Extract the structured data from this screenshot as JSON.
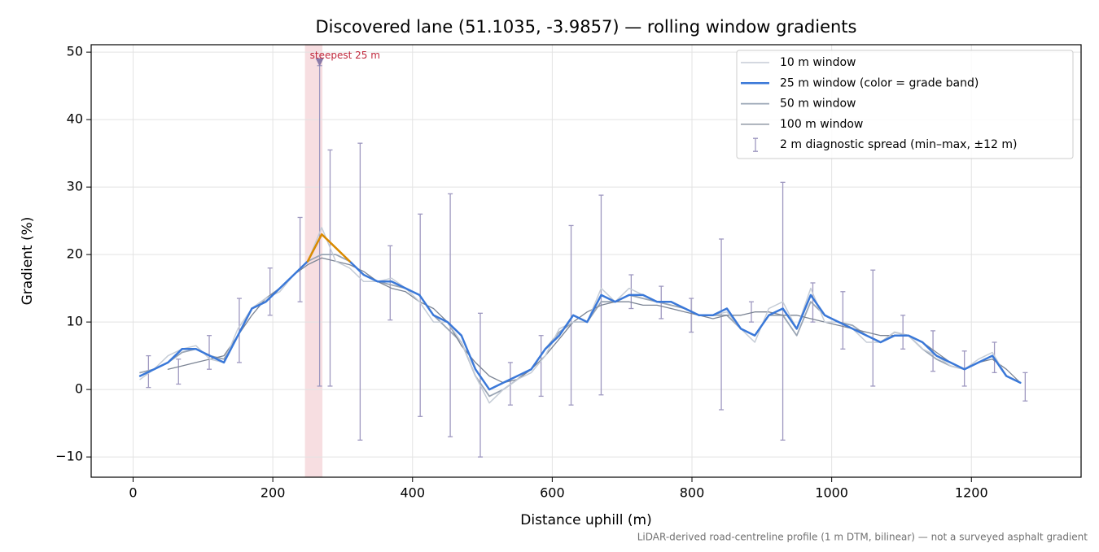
{
  "chart_data": {
    "type": "line",
    "title": "Discovered lane (51.1035, -3.9857) — rolling window gradients",
    "x_label": "Distance uphill (m)",
    "y_label": "Gradient (%)",
    "footnote": "LiDAR-derived road-centreline profile (1 m DTM, bilinear) — not a surveyed asphalt gradient",
    "xlim": [
      -60,
      1357
    ],
    "ylim": [
      -13,
      51.1
    ],
    "xticks": [
      0,
      200,
      400,
      600,
      800,
      1000,
      1200
    ],
    "yticks": [
      {
        "value": -10,
        "label": "−10"
      },
      0,
      10,
      20,
      30,
      40,
      50
    ],
    "grid": true,
    "legend": "upper right",
    "x": [
      10,
      30,
      50,
      70,
      90,
      110,
      130,
      150,
      170,
      190,
      210,
      230,
      250,
      270,
      290,
      310,
      330,
      350,
      370,
      390,
      410,
      430,
      450,
      470,
      490,
      510,
      530,
      550,
      570,
      590,
      610,
      630,
      650,
      670,
      690,
      710,
      730,
      750,
      770,
      790,
      810,
      830,
      850,
      870,
      890,
      910,
      930,
      950,
      970,
      990,
      1010,
      1030,
      1050,
      1070,
      1090,
      1110,
      1130,
      1150,
      1170,
      1190,
      1210,
      1230,
      1250,
      1270
    ],
    "series": [
      {
        "name": "10 m window",
        "color": "#c5ccd6",
        "width": 1.5,
        "values": [
          1.5,
          3,
          5,
          6,
          6.5,
          4.5,
          4,
          9,
          12,
          13.5,
          14.5,
          17,
          19,
          24,
          19,
          18,
          16,
          16,
          16.5,
          15,
          13,
          10,
          10,
          7,
          2,
          -2,
          0,
          1.5,
          2.5,
          5,
          9,
          10,
          10,
          15,
          13,
          15,
          14,
          13,
          13,
          12,
          11,
          11,
          11.5,
          9,
          7,
          12,
          13,
          9,
          15,
          10,
          10,
          9,
          7,
          7,
          8.5,
          8,
          6,
          5,
          3.5,
          3,
          4.5,
          5.5,
          2,
          1
        ]
      },
      {
        "name": "25 m window (color = grade band)",
        "color": "#3a78d8",
        "width": 2.5,
        "band_threshold": 20,
        "band_color": "#d98a00",
        "values": [
          2,
          3,
          4,
          6,
          6,
          5,
          4,
          8,
          12,
          13,
          15,
          17,
          19,
          23,
          21,
          19,
          17,
          16,
          16,
          15,
          14,
          11,
          10,
          8,
          3,
          0,
          1,
          2,
          3,
          6,
          8,
          11,
          10,
          14,
          13,
          14,
          14,
          13,
          13,
          12,
          11,
          11,
          12,
          9,
          8,
          11,
          12,
          9,
          14,
          11,
          10,
          9,
          8,
          7,
          8,
          8,
          7,
          5,
          4,
          3,
          4,
          5,
          2,
          1
        ]
      },
      {
        "name": "50 m window",
        "color": "#9aa5b4",
        "width": 1.8,
        "values": [
          2.5,
          3,
          4,
          5.5,
          6,
          5,
          4.5,
          8,
          12,
          13.5,
          15,
          17,
          19,
          20,
          20,
          19,
          17,
          16,
          15.5,
          15,
          14,
          11,
          9,
          7,
          2,
          -1,
          0,
          1.5,
          3,
          6,
          8.5,
          10,
          10,
          13,
          13,
          14,
          13.5,
          13,
          12.5,
          12,
          11,
          11,
          11,
          9,
          8,
          11,
          11,
          8,
          13,
          11,
          10,
          9.5,
          8,
          7,
          8.5,
          8,
          6,
          4.5,
          3.5,
          3,
          4,
          5,
          2,
          1
        ]
      },
      {
        "name": "100 m window",
        "color": "#7b8494",
        "width": 1.3,
        "values": [
          null,
          null,
          3,
          3.5,
          4,
          4.5,
          5,
          8,
          11,
          13.5,
          15,
          17,
          18.5,
          19.5,
          19,
          18.5,
          17.5,
          16,
          15,
          14.5,
          13,
          12,
          10,
          6.5,
          4,
          2,
          1,
          1.5,
          3,
          5,
          7.5,
          10,
          11.5,
          12.5,
          13,
          13,
          12.5,
          12.5,
          12,
          11.5,
          11,
          10.5,
          11,
          11,
          11.5,
          11.5,
          11,
          11,
          10.5,
          10,
          9.5,
          9,
          8.5,
          8,
          8,
          8,
          7,
          5.5,
          4,
          3,
          4,
          4.5,
          3,
          1
        ]
      }
    ],
    "error_bars": {
      "name": "2 m diagnostic spread (min–max, ±12 m)",
      "color": "#9e98c0",
      "x": [
        22,
        65,
        109,
        152,
        196,
        239,
        267,
        282,
        325,
        368,
        411,
        454,
        497,
        540,
        584,
        627,
        670,
        713,
        756,
        799,
        842,
        885,
        930,
        973,
        1016,
        1059,
        1102,
        1145,
        1190,
        1233,
        1277
      ],
      "low": [
        0.3,
        0.8,
        3,
        4,
        11,
        13,
        0.5,
        0.5,
        -7.5,
        10.3,
        -4,
        -7,
        -10,
        -2.3,
        -1,
        -2.3,
        -0.8,
        12,
        10.5,
        8.5,
        -3,
        10,
        -7.5,
        10,
        6,
        0.5,
        6,
        2.7,
        0.5,
        2.5,
        -1.7
      ],
      "high": [
        5,
        4.5,
        8,
        13.5,
        18,
        25.5,
        48,
        35.5,
        36.5,
        21.3,
        26,
        29,
        11.3,
        4,
        8,
        24.3,
        28.8,
        17,
        15.3,
        13.5,
        22.3,
        13,
        30.7,
        15.8,
        14.5,
        17.7,
        11,
        8.7,
        5.7,
        7,
        2.5
      ]
    },
    "highlight": {
      "x_range": [
        246,
        271
      ],
      "label": "steepest 25 m",
      "marker_x": 267,
      "marker_y": 48.5,
      "color": "#e8a0a8",
      "label_color": "#c0283c"
    }
  }
}
